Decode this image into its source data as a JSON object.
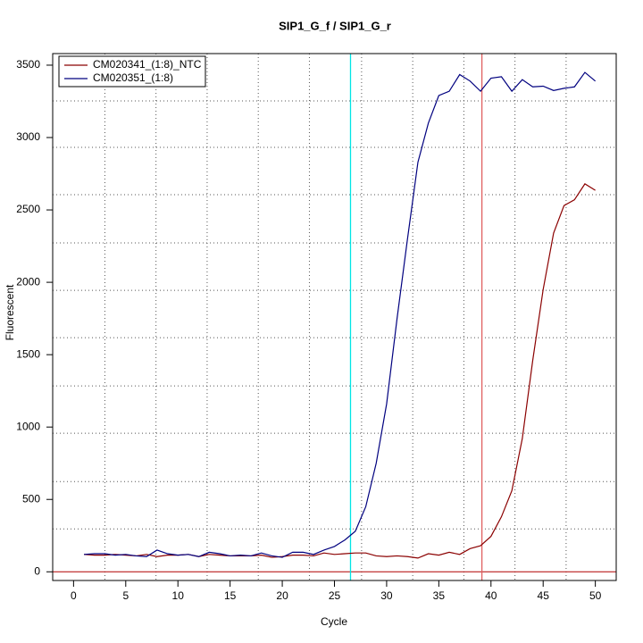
{
  "chart_data": {
    "type": "line",
    "title": "SIP1_G_f / SIP1_G_r",
    "x_label": "Cycle",
    "y_label": "Fluorescent",
    "x": [
      1,
      2,
      3,
      4,
      5,
      6,
      7,
      8,
      9,
      10,
      11,
      12,
      13,
      14,
      15,
      16,
      17,
      18,
      19,
      20,
      21,
      22,
      23,
      24,
      25,
      26,
      27,
      28,
      29,
      30,
      31,
      32,
      33,
      34,
      35,
      36,
      37,
      38,
      39,
      40,
      41,
      42,
      43,
      44,
      45,
      46,
      47,
      48,
      49,
      50
    ],
    "series": [
      {
        "name": "CM020341_(1:8)_NTC",
        "color": "#8b0000",
        "values": [
          120,
          115,
          115,
          120,
          115,
          110,
          120,
          105,
          115,
          115,
          120,
          105,
          120,
          115,
          110,
          110,
          110,
          115,
          100,
          105,
          115,
          115,
          110,
          130,
          120,
          125,
          130,
          130,
          110,
          105,
          110,
          105,
          95,
          125,
          115,
          135,
          120,
          160,
          180,
          245,
          380,
          560,
          920,
          1460,
          1950,
          2340,
          2530,
          2570,
          2680,
          2635
        ]
      },
      {
        "name": "CM020351_(1:8)",
        "color": "#00007f",
        "values": [
          120,
          125,
          125,
          115,
          120,
          110,
          105,
          150,
          125,
          115,
          120,
          105,
          135,
          125,
          110,
          115,
          110,
          130,
          110,
          100,
          135,
          135,
          120,
          150,
          175,
          220,
          280,
          450,
          750,
          1160,
          1750,
          2300,
          2830,
          3100,
          3290,
          3320,
          3435,
          3390,
          3320,
          3410,
          3420,
          3320,
          3400,
          3350,
          3355,
          3325,
          3340,
          3350,
          3450,
          3390
        ]
      }
    ],
    "xlim": [
      -2,
      52
    ],
    "ylim": [
      -60,
      3580
    ],
    "xticks": [
      0,
      5,
      10,
      15,
      20,
      25,
      30,
      35,
      40,
      45,
      50
    ],
    "yticks": [
      0,
      500,
      1000,
      1500,
      2000,
      2500,
      3000,
      3500
    ],
    "grid_x": [
      3,
      7.9,
      12.8,
      17.7,
      22.6,
      27.6,
      32.5,
      37.4,
      42.3,
      47.2
    ],
    "grid_y": [
      296,
      623,
      957,
      1284,
      1617,
      1944,
      2272,
      2605,
      2932,
      3253
    ],
    "vlines": [
      {
        "value": 26.54,
        "color": "#00e5e5"
      },
      {
        "value": 39.13,
        "color": "#e06060"
      }
    ],
    "hline": {
      "value": 0,
      "color": "#b00000"
    },
    "legend": "top-left"
  }
}
